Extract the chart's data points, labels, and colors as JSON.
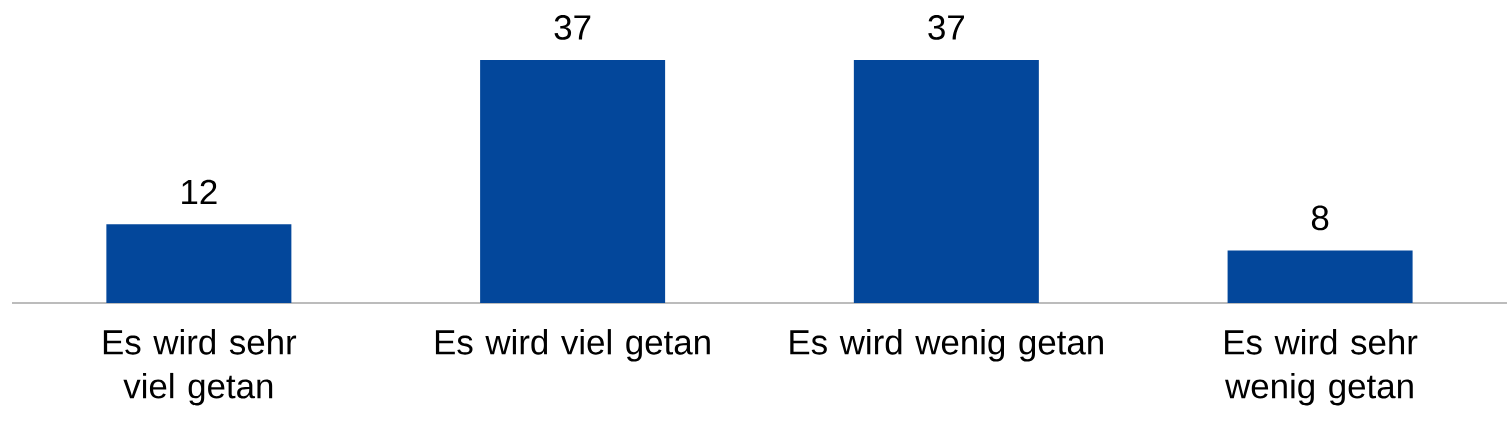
{
  "chart_data": {
    "type": "bar",
    "categories": [
      "Es wird sehr viel getan",
      "Es wird viel getan",
      "Es wird wenig getan",
      "Es wird sehr wenig getan"
    ],
    "values": [
      12,
      37,
      37,
      8
    ],
    "color": "#03479b",
    "data_labels": true
  }
}
